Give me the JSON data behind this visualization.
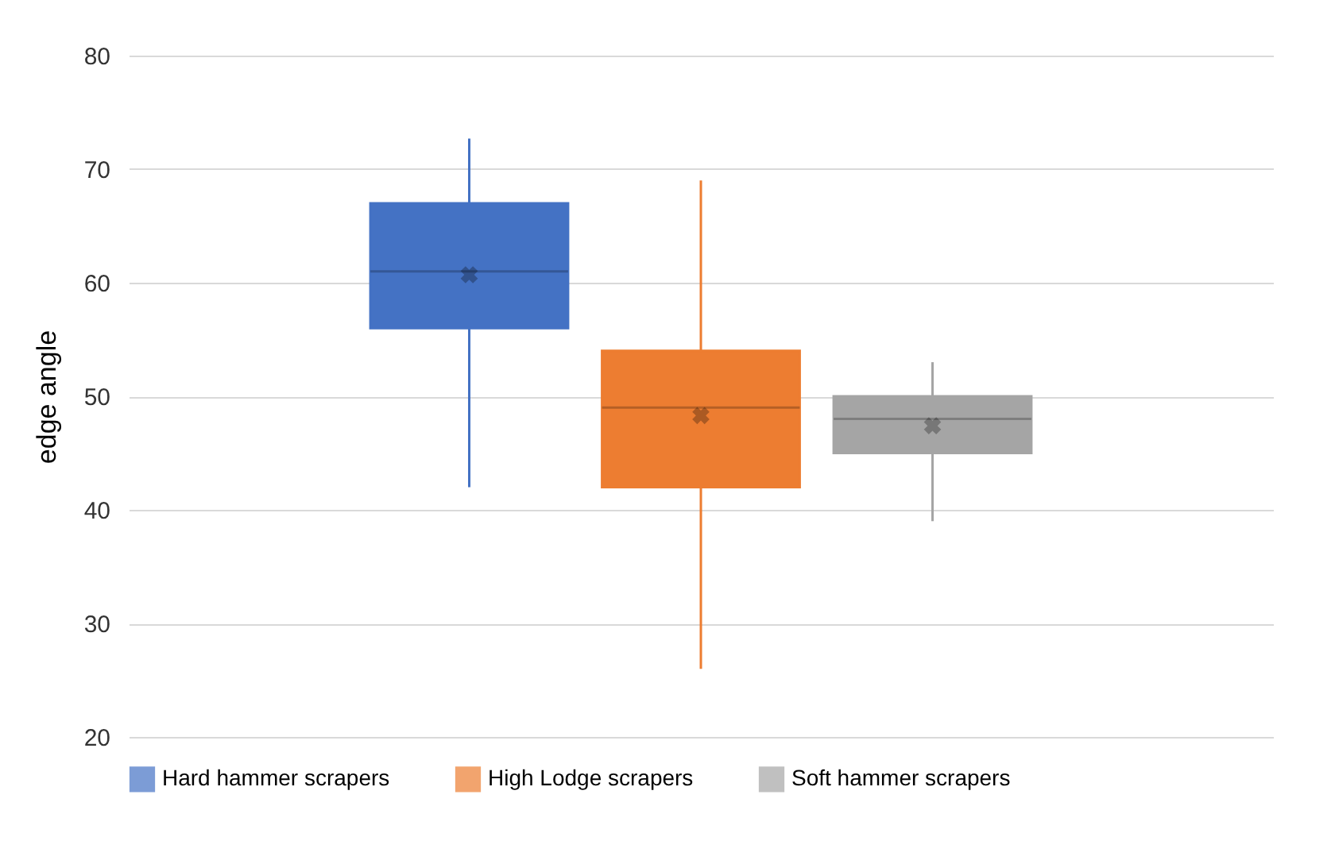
{
  "chart_data": {
    "type": "box",
    "ylabel": "edge angle",
    "categories": [
      null
    ],
    "ylim": [
      20,
      80
    ],
    "yticks": [
      20,
      30,
      40,
      50,
      60,
      70,
      80
    ],
    "grid": "y",
    "legend": "bottom",
    "series": [
      {
        "name": "Hard hammer scrapers",
        "color": "#4472c4",
        "boxes": [
          {
            "low": 42,
            "q1": 56,
            "median": 61,
            "q3": 67,
            "high": 72.7,
            "mean": 60.7
          }
        ]
      },
      {
        "name": "High Lodge scrapers",
        "color": "#ed7d31",
        "boxes": [
          {
            "low": 26,
            "q1": 42,
            "median": 49,
            "q3": 54,
            "high": 69,
            "mean": 48.3
          }
        ]
      },
      {
        "name": "Soft hammer scrapers",
        "color": "#a5a5a5",
        "boxes": [
          {
            "low": 39,
            "q1": 45,
            "median": 48,
            "q3": 50,
            "high": 53,
            "mean": 47.4
          }
        ]
      }
    ]
  }
}
